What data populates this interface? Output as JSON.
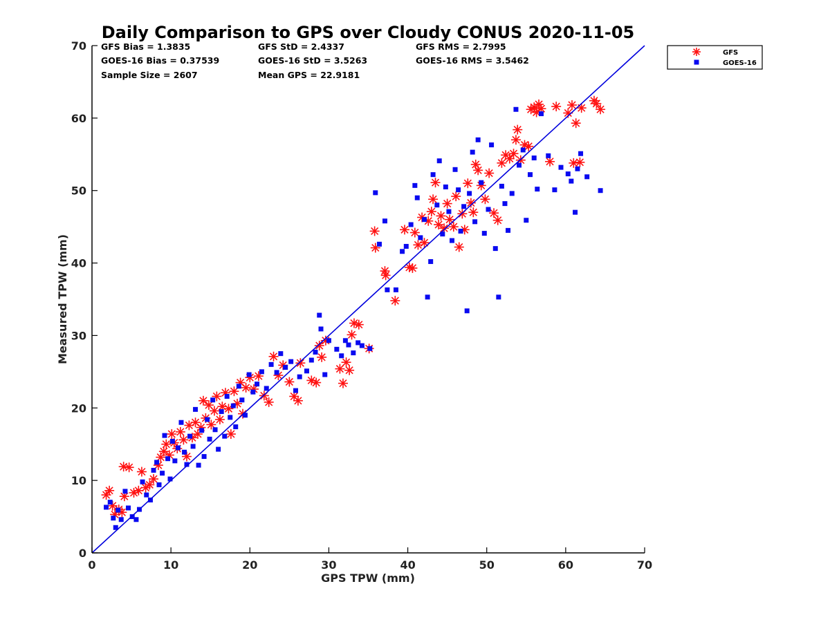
{
  "chart_data": {
    "type": "scatter",
    "title": "Daily Comparison to GPS over Cloudy CONUS 2020-11-05",
    "xlabel": "GPS TPW (mm)",
    "ylabel": "Measured TPW (mm)",
    "xlim": [
      0,
      70
    ],
    "ylim": [
      0,
      70
    ],
    "xticks": [
      "0",
      "10",
      "20",
      "30",
      "40",
      "50",
      "60",
      "70"
    ],
    "yticks": [
      "0",
      "10",
      "20",
      "30",
      "40",
      "50",
      "60",
      "70"
    ],
    "grid": false,
    "legend_position": "outside top-right",
    "reference_line": {
      "x": [
        0,
        70
      ],
      "y": [
        0,
        70
      ],
      "color": "#0000dd"
    },
    "stats": [
      [
        "GFS Bias = 1.3835",
        "GFS StD = 2.4337",
        "GFS RMS = 2.7995"
      ],
      [
        "GOES-16 Bias = 0.37539",
        "GOES-16 StD = 3.5263",
        "GOES-16 RMS = 3.5462"
      ],
      [
        "Sample Size = 2607",
        "Mean GPS = 22.9181",
        ""
      ]
    ],
    "series": [
      {
        "name": "GFS",
        "marker": "asterisk",
        "color": "#ff1111",
        "points": [
          [
            1.8,
            8.0
          ],
          [
            2.2,
            8.6
          ],
          [
            2.6,
            6.5
          ],
          [
            2.9,
            5.3
          ],
          [
            3.4,
            6.0
          ],
          [
            3.8,
            5.6
          ],
          [
            4.1,
            7.8
          ],
          [
            4.0,
            11.9
          ],
          [
            4.7,
            11.8
          ],
          [
            5.3,
            8.3
          ],
          [
            5.9,
            8.6
          ],
          [
            6.3,
            11.2
          ],
          [
            6.8,
            9.0
          ],
          [
            7.3,
            9.4
          ],
          [
            7.8,
            10.2
          ],
          [
            8.4,
            12.1
          ],
          [
            8.7,
            13.2
          ],
          [
            9.1,
            14.0
          ],
          [
            9.4,
            15.0
          ],
          [
            9.8,
            13.5
          ],
          [
            10.1,
            16.4
          ],
          [
            10.4,
            15.2
          ],
          [
            10.8,
            14.4
          ],
          [
            11.2,
            16.7
          ],
          [
            11.6,
            15.6
          ],
          [
            12.0,
            13.3
          ],
          [
            12.3,
            17.6
          ],
          [
            12.7,
            15.9
          ],
          [
            13.1,
            18.0
          ],
          [
            13.4,
            16.4
          ],
          [
            13.8,
            17.3
          ],
          [
            14.1,
            21.0
          ],
          [
            14.4,
            18.6
          ],
          [
            14.8,
            20.4
          ],
          [
            15.1,
            17.7
          ],
          [
            15.5,
            19.6
          ],
          [
            15.8,
            21.6
          ],
          [
            16.2,
            18.4
          ],
          [
            16.5,
            20.2
          ],
          [
            16.9,
            22.1
          ],
          [
            17.3,
            19.9
          ],
          [
            17.6,
            16.4
          ],
          [
            18.0,
            22.3
          ],
          [
            18.4,
            20.6
          ],
          [
            18.8,
            23.5
          ],
          [
            19.1,
            19.2
          ],
          [
            19.5,
            22.8
          ],
          [
            20.0,
            24.2
          ],
          [
            20.5,
            22.6
          ],
          [
            21.1,
            24.4
          ],
          [
            21.8,
            21.7
          ],
          [
            22.4,
            20.8
          ],
          [
            23.0,
            27.1
          ],
          [
            23.6,
            24.5
          ],
          [
            24.2,
            25.9
          ],
          [
            25.0,
            23.6
          ],
          [
            25.6,
            21.6
          ],
          [
            26.1,
            21.0
          ],
          [
            26.4,
            26.2
          ],
          [
            27.8,
            23.8
          ],
          [
            28.4,
            23.5
          ],
          [
            28.8,
            28.6
          ],
          [
            29.1,
            27.0
          ],
          [
            29.6,
            29.3
          ],
          [
            31.4,
            25.4
          ],
          [
            31.8,
            23.4
          ],
          [
            32.2,
            26.3
          ],
          [
            32.6,
            25.2
          ],
          [
            32.9,
            30.1
          ],
          [
            33.2,
            31.7
          ],
          [
            33.8,
            31.5
          ],
          [
            35.1,
            28.2
          ],
          [
            35.8,
            44.4
          ],
          [
            35.9,
            42.1
          ],
          [
            37.1,
            38.9
          ],
          [
            37.2,
            38.3
          ],
          [
            38.4,
            34.8
          ],
          [
            39.6,
            44.6
          ],
          [
            40.2,
            39.4
          ],
          [
            40.6,
            39.3
          ],
          [
            40.9,
            44.2
          ],
          [
            41.3,
            42.5
          ],
          [
            41.8,
            46.3
          ],
          [
            42.1,
            42.8
          ],
          [
            42.6,
            45.8
          ],
          [
            43.0,
            47.1
          ],
          [
            43.2,
            48.8
          ],
          [
            43.5,
            51.1
          ],
          [
            43.9,
            45.3
          ],
          [
            44.2,
            46.5
          ],
          [
            44.6,
            44.8
          ],
          [
            45.0,
            48.2
          ],
          [
            45.3,
            46.0
          ],
          [
            45.8,
            45.0
          ],
          [
            46.1,
            49.2
          ],
          [
            46.5,
            42.2
          ],
          [
            46.9,
            46.8
          ],
          [
            47.2,
            44.6
          ],
          [
            47.6,
            51.0
          ],
          [
            48.0,
            48.3
          ],
          [
            48.3,
            47.0
          ],
          [
            48.6,
            53.6
          ],
          [
            48.9,
            52.8
          ],
          [
            49.3,
            50.7
          ],
          [
            49.8,
            48.8
          ],
          [
            50.3,
            52.4
          ],
          [
            50.9,
            46.9
          ],
          [
            51.4,
            45.9
          ],
          [
            51.9,
            53.8
          ],
          [
            52.4,
            54.9
          ],
          [
            52.9,
            54.4
          ],
          [
            53.4,
            55.1
          ],
          [
            53.7,
            57.0
          ],
          [
            53.9,
            58.4
          ],
          [
            54.3,
            54.2
          ],
          [
            54.8,
            56.3
          ],
          [
            55.3,
            56.1
          ],
          [
            56.0,
            61.5
          ],
          [
            56.3,
            60.8
          ],
          [
            56.6,
            61.9
          ],
          [
            56.9,
            61.3
          ],
          [
            55.6,
            61.2
          ],
          [
            58.0,
            54.0
          ],
          [
            58.8,
            61.6
          ],
          [
            60.3,
            60.7
          ],
          [
            60.8,
            61.8
          ],
          [
            61.3,
            59.3
          ],
          [
            61.8,
            53.9
          ],
          [
            61.0,
            53.8
          ],
          [
            62.0,
            61.4
          ],
          [
            63.6,
            62.4
          ],
          [
            63.9,
            62.0
          ],
          [
            64.4,
            61.2
          ]
        ]
      },
      {
        "name": "GOES-16",
        "marker": "square",
        "color": "#0a0af0",
        "points": [
          [
            1.8,
            6.3
          ],
          [
            2.3,
            7.0
          ],
          [
            2.7,
            4.8
          ],
          [
            3.0,
            3.5
          ],
          [
            3.3,
            5.9
          ],
          [
            3.7,
            4.6
          ],
          [
            4.2,
            8.5
          ],
          [
            4.6,
            6.2
          ],
          [
            5.1,
            5.0
          ],
          [
            5.6,
            4.6
          ],
          [
            6.0,
            6.0
          ],
          [
            6.4,
            9.8
          ],
          [
            6.9,
            8.0
          ],
          [
            7.4,
            7.3
          ],
          [
            7.8,
            11.4
          ],
          [
            8.2,
            12.5
          ],
          [
            8.5,
            9.4
          ],
          [
            8.9,
            11.0
          ],
          [
            9.2,
            16.2
          ],
          [
            9.6,
            13.0
          ],
          [
            9.9,
            10.2
          ],
          [
            10.2,
            15.4
          ],
          [
            10.5,
            12.7
          ],
          [
            10.9,
            14.5
          ],
          [
            11.3,
            18.0
          ],
          [
            11.7,
            13.9
          ],
          [
            12.0,
            12.2
          ],
          [
            12.4,
            16.1
          ],
          [
            12.8,
            14.7
          ],
          [
            13.1,
            19.8
          ],
          [
            13.5,
            12.1
          ],
          [
            13.9,
            16.9
          ],
          [
            14.2,
            13.3
          ],
          [
            14.6,
            18.4
          ],
          [
            14.9,
            15.7
          ],
          [
            15.3,
            21.1
          ],
          [
            15.6,
            17.0
          ],
          [
            16.0,
            14.3
          ],
          [
            16.4,
            19.5
          ],
          [
            16.8,
            16.1
          ],
          [
            17.1,
            21.6
          ],
          [
            17.5,
            18.7
          ],
          [
            17.9,
            20.3
          ],
          [
            18.2,
            17.4
          ],
          [
            18.6,
            23.0
          ],
          [
            19.0,
            21.1
          ],
          [
            19.4,
            19.0
          ],
          [
            19.9,
            24.6
          ],
          [
            20.4,
            22.2
          ],
          [
            20.9,
            23.3
          ],
          [
            21.5,
            25.0
          ],
          [
            22.1,
            22.7
          ],
          [
            22.7,
            26.0
          ],
          [
            23.4,
            24.9
          ],
          [
            23.9,
            27.5
          ],
          [
            24.5,
            25.6
          ],
          [
            25.2,
            26.4
          ],
          [
            25.8,
            22.4
          ],
          [
            26.3,
            24.3
          ],
          [
            27.2,
            25.1
          ],
          [
            27.8,
            26.6
          ],
          [
            28.3,
            27.7
          ],
          [
            28.8,
            32.8
          ],
          [
            29.0,
            30.9
          ],
          [
            29.5,
            24.6
          ],
          [
            30.0,
            29.3
          ],
          [
            31.0,
            28.1
          ],
          [
            31.6,
            27.2
          ],
          [
            32.1,
            29.3
          ],
          [
            32.5,
            28.7
          ],
          [
            33.1,
            27.6
          ],
          [
            33.7,
            29.0
          ],
          [
            34.2,
            28.6
          ],
          [
            35.2,
            28.2
          ],
          [
            35.9,
            49.7
          ],
          [
            36.4,
            42.6
          ],
          [
            37.1,
            45.8
          ],
          [
            37.4,
            36.3
          ],
          [
            38.5,
            36.3
          ],
          [
            39.3,
            41.6
          ],
          [
            39.8,
            42.3
          ],
          [
            40.4,
            45.3
          ],
          [
            40.9,
            50.7
          ],
          [
            41.2,
            49.0
          ],
          [
            41.6,
            43.5
          ],
          [
            42.1,
            46.0
          ],
          [
            42.5,
            35.3
          ],
          [
            42.9,
            40.2
          ],
          [
            43.2,
            52.2
          ],
          [
            43.7,
            48.0
          ],
          [
            44.0,
            54.1
          ],
          [
            44.4,
            44.0
          ],
          [
            44.8,
            50.5
          ],
          [
            45.2,
            47.1
          ],
          [
            45.6,
            43.1
          ],
          [
            46.0,
            52.9
          ],
          [
            46.4,
            50.1
          ],
          [
            46.7,
            44.4
          ],
          [
            47.1,
            47.8
          ],
          [
            47.5,
            33.4
          ],
          [
            47.8,
            49.6
          ],
          [
            48.2,
            55.3
          ],
          [
            48.5,
            45.7
          ],
          [
            48.9,
            57.0
          ],
          [
            49.3,
            51.1
          ],
          [
            49.7,
            44.1
          ],
          [
            50.2,
            47.4
          ],
          [
            50.6,
            56.3
          ],
          [
            51.1,
            42.0
          ],
          [
            51.5,
            35.3
          ],
          [
            51.9,
            50.6
          ],
          [
            52.3,
            48.2
          ],
          [
            52.7,
            44.5
          ],
          [
            53.2,
            49.6
          ],
          [
            53.7,
            61.2
          ],
          [
            54.1,
            53.5
          ],
          [
            54.6,
            55.6
          ],
          [
            55.0,
            45.9
          ],
          [
            55.5,
            52.2
          ],
          [
            56.0,
            54.5
          ],
          [
            56.4,
            50.2
          ],
          [
            56.9,
            60.6
          ],
          [
            57.8,
            54.8
          ],
          [
            58.6,
            50.1
          ],
          [
            59.4,
            53.2
          ],
          [
            60.3,
            52.3
          ],
          [
            60.7,
            51.3
          ],
          [
            61.2,
            47.0
          ],
          [
            61.5,
            53.0
          ],
          [
            61.9,
            55.1
          ],
          [
            62.7,
            51.9
          ],
          [
            64.4,
            50.0
          ]
        ]
      }
    ]
  }
}
